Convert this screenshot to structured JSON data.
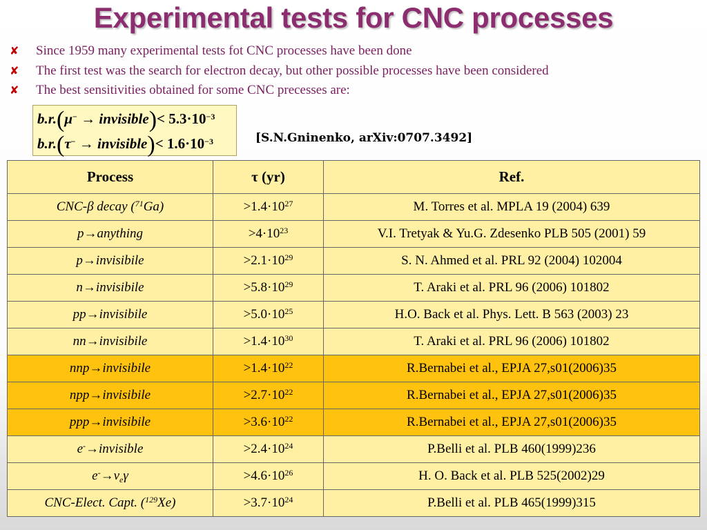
{
  "title": "Experimental tests for CNC processes",
  "bullets": [
    "Since 1959 many experimental tests fot CNC processes have been done",
    "The first test was  the search for electron decay, but other possible processes have been considered",
    "The best sensitivities obtained for some CNC precesses are:"
  ],
  "formula": {
    "prefix": "b.r.",
    "line1": {
      "particle": "μ",
      "charge": "−",
      "arrow": "→",
      "final": "invisible",
      "rel": "<",
      "value": "5.3·10",
      "exp": "−3"
    },
    "line2": {
      "particle": "τ",
      "charge": "−",
      "arrow": "→",
      "final": "invisible",
      "rel": "<",
      "value": "1.6·10",
      "exp": "−3"
    }
  },
  "citation": "[S.N.Gninenko, arXiv:0707.3492]",
  "table": {
    "headers": [
      "Process",
      "τ (yr)",
      "Ref."
    ],
    "rows": [
      {
        "p1": "CNC-β decay (",
        "psup": "71",
        "p2": "Ga)",
        "tau": ">1.4·10",
        "exp": "27",
        "ref": "M. Torres et al. MPLA 19 (2004) 639"
      },
      {
        "p1": "p→anything",
        "tau": ">4·10",
        "exp": "23",
        "ref": "V.I. Tretyak & Yu.G. Zdesenko PLB 505 (2001) 59"
      },
      {
        "p1": "p→invisibile",
        "tau": ">2.1·10",
        "exp": "29",
        "ref": "S. N. Ahmed et al. PRL 92 (2004) 102004"
      },
      {
        "p1": "n→invisibile",
        "tau": ">5.8·10",
        "exp": "29",
        "ref": "T. Araki et al. PRL 96 (2006) 101802"
      },
      {
        "p1": "pp→invisibile",
        "tau": ">5.0·10",
        "exp": "25",
        "ref": "H.O. Back et al. Phys. Lett. B 563 (2003) 23"
      },
      {
        "p1": "nn→invisibile",
        "tau": ">1.4·10",
        "exp": "30",
        "ref": "T. Araki et al. PRL 96 (2006) 101802"
      },
      {
        "p1": "nnp→invisibile",
        "tau": ">1.4·10",
        "exp": "22",
        "ref": "R.Bernabei et al., EPJA 27,s01(2006)35"
      },
      {
        "p1": "npp→invisibile",
        "tau": ">2.7·10",
        "exp": "22",
        "ref": "R.Bernabei et al., EPJA 27,s01(2006)35"
      },
      {
        "p1": "ppp→invisibile",
        "tau": ">3.6·10",
        "exp": "22",
        "ref": "R.Bernabei et al., EPJA 27,s01(2006)35"
      },
      {
        "p1": "e",
        "psup": "-",
        "p2": "→invisible",
        "tau": ">2.4·10",
        "exp": "24",
        "ref": "P.Belli et al. PLB 460(1999)236"
      },
      {
        "p1": "e",
        "psup": "-",
        "p2": "→ν",
        "psub": "e",
        "p3": "γ",
        "tau": ">4.6·10",
        "exp": "26",
        "ref": "H. O. Back et al. PLB 525(2002)29"
      },
      {
        "p1": "CNC-Elect. Capt. (",
        "psup": "129",
        "p2": "Xe)",
        "tau": ">3.7·10",
        "exp": "24",
        "ref": "P.Belli et al. PLB 465(1999)315"
      }
    ]
  },
  "colors": {
    "title": "#8b2d6f",
    "bullet_text": "#7a1f60",
    "bullet_marker": "#c00000",
    "row_light": "#fff0a4",
    "row_dark": "#ffc20f",
    "formula_bg": "#fff8c0"
  }
}
